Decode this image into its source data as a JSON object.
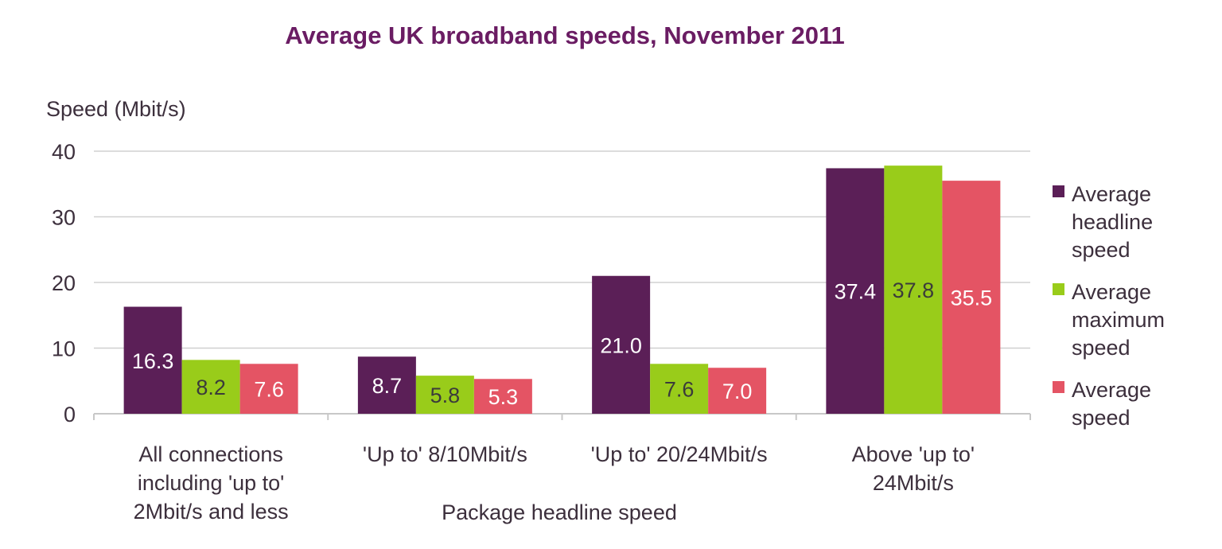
{
  "chart_data": {
    "type": "bar",
    "title": "Average UK broadband speeds, November 2011",
    "ylabel": "Speed (Mbit/s)",
    "xlabel": "Package headline speed",
    "ylim": [
      0,
      40
    ],
    "yticks": [
      0,
      10,
      20,
      30,
      40
    ],
    "grid": true,
    "legend_position": "right",
    "categories": [
      [
        "All connections",
        "including 'up to'",
        "2Mbit/s and less"
      ],
      [
        "'Up to' 8/10Mbit/s"
      ],
      [
        "'Up to' 20/24Mbit/s"
      ],
      [
        "Above 'up to'",
        "24Mbit/s"
      ]
    ],
    "series": [
      {
        "name": "Average headline speed",
        "legend_lines": [
          "Average",
          "headline",
          "speed"
        ],
        "color": "#5b1f57",
        "label_color": "#ffffff",
        "values": [
          16.3,
          8.7,
          21.0,
          37.4
        ],
        "labels": [
          "16.3",
          "8.7",
          "21.0",
          "37.4"
        ]
      },
      {
        "name": "Average maximum speed",
        "legend_lines": [
          "Average",
          "maximum",
          "speed"
        ],
        "color": "#99cc1a",
        "label_color": "#3b3b3b",
        "values": [
          8.2,
          5.8,
          7.6,
          37.8
        ],
        "labels": [
          "8.2",
          "5.8",
          "7.6",
          "37.8"
        ]
      },
      {
        "name": "Average speed",
        "legend_lines": [
          "Average",
          "speed"
        ],
        "color": "#e45464",
        "label_color": "#ffffff",
        "values": [
          7.6,
          5.3,
          7.0,
          35.5
        ],
        "labels": [
          "7.6",
          "5.3",
          "7.0",
          "35.5"
        ]
      }
    ]
  }
}
